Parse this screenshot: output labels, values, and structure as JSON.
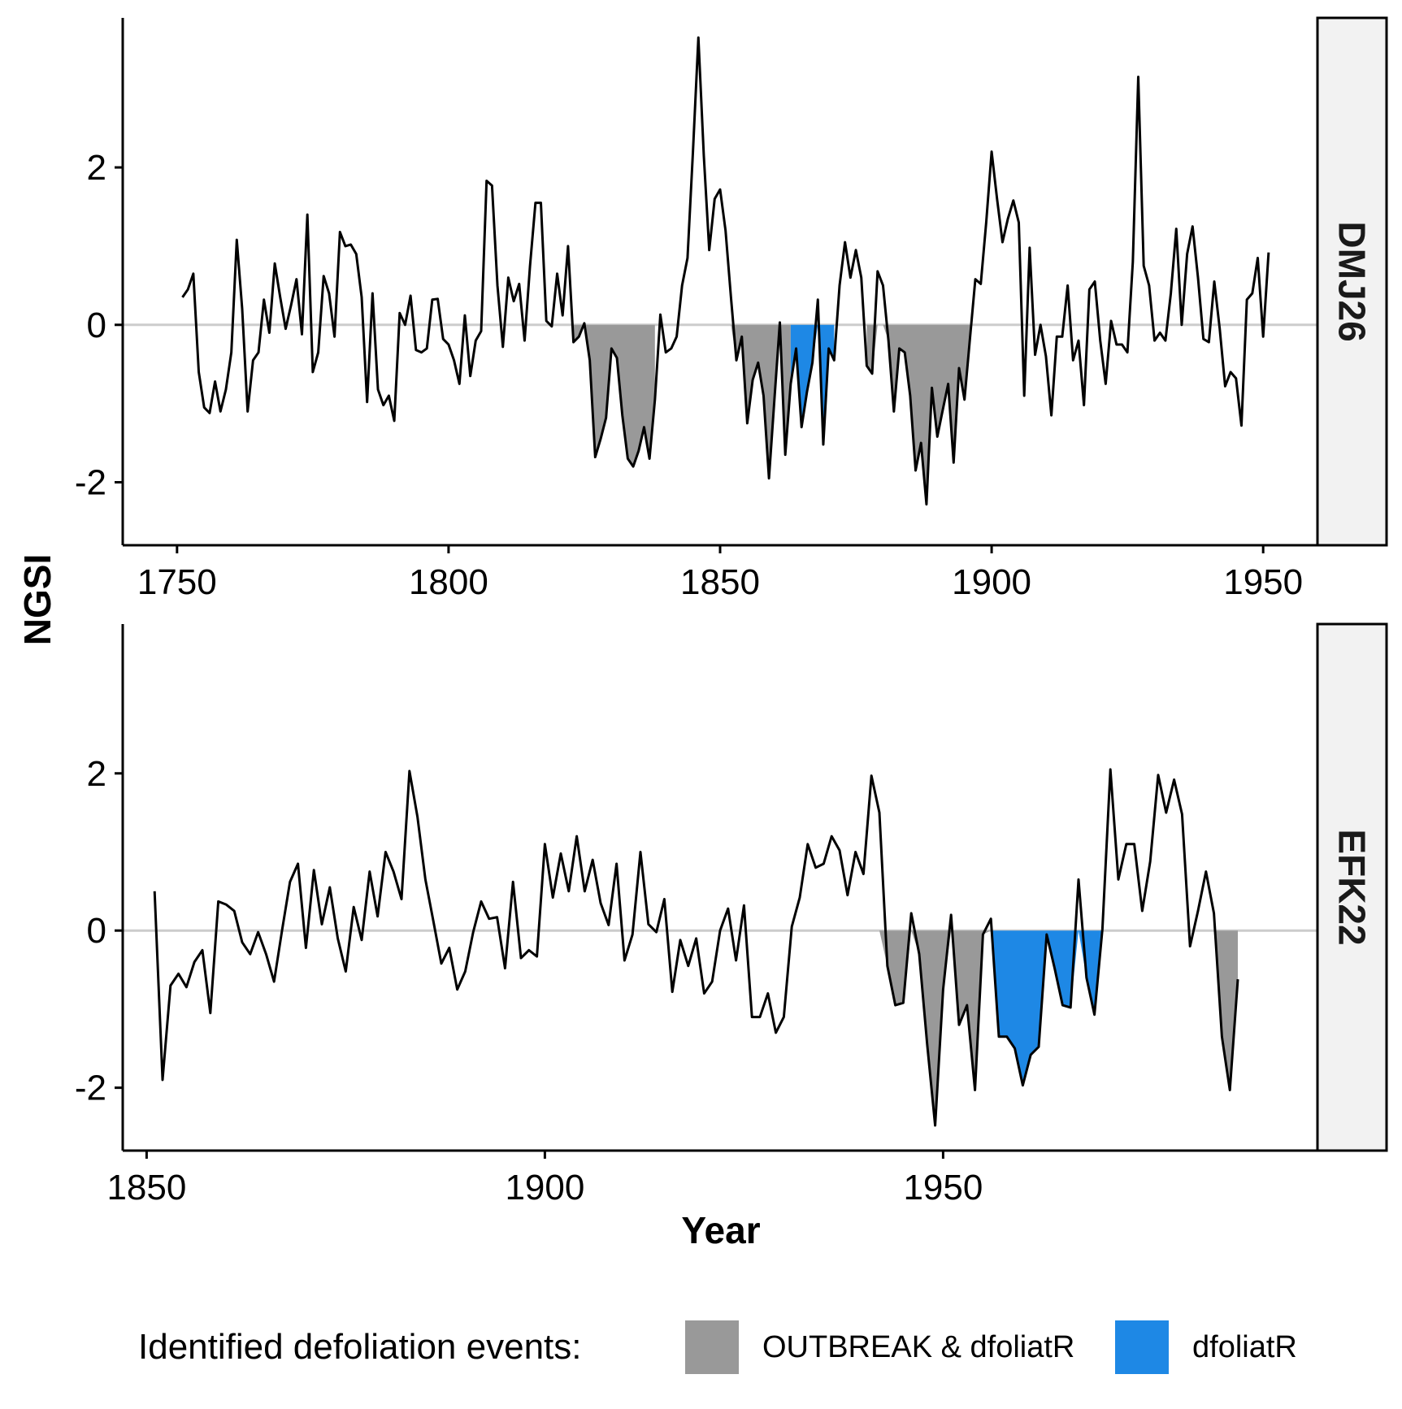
{
  "chart_data": {
    "type": "line",
    "ylabel": "NGSI",
    "xlabel": "Year",
    "legend": {
      "title": "Identified defoliation events:",
      "position": "bottom",
      "entries": [
        {
          "label": "OUTBREAK & dfoliatR",
          "color": "#999999"
        },
        {
          "label": "dfoliatR",
          "color": "#1e88e5"
        }
      ]
    },
    "ylim": [
      -2.8,
      3.9
    ],
    "yticks": [
      -2,
      0,
      2
    ],
    "ytick_labels": [
      "-2",
      "0",
      "2"
    ],
    "zero_line_color": "#cccccc",
    "line_color": "#000000",
    "panels": [
      {
        "strip": "DMJ26",
        "xlim": [
          1740,
          1960
        ],
        "xticks": [
          1750,
          1800,
          1850,
          1900,
          1950
        ],
        "xtick_labels": [
          "1750",
          "1800",
          "1850",
          "1900",
          "1950"
        ],
        "start_year": 1751,
        "values": [
          0.35,
          0.45,
          0.65,
          -0.6,
          -1.05,
          -1.12,
          -0.72,
          -1.1,
          -0.82,
          -0.35,
          1.08,
          0.2,
          -1.1,
          -0.45,
          -0.35,
          0.32,
          -0.1,
          0.78,
          0.35,
          -0.05,
          0.25,
          0.58,
          -0.12,
          1.4,
          -0.6,
          -0.35,
          0.62,
          0.4,
          -0.15,
          1.18,
          1.0,
          1.02,
          0.9,
          0.35,
          -0.98,
          0.4,
          -0.82,
          -1.02,
          -0.9,
          -1.22,
          0.15,
          0.0,
          0.37,
          -0.32,
          -0.35,
          -0.3,
          0.32,
          0.33,
          -0.18,
          -0.25,
          -0.45,
          -0.75,
          0.12,
          -0.65,
          -0.2,
          -0.08,
          1.83,
          1.77,
          0.5,
          -0.28,
          0.6,
          0.3,
          0.52,
          -0.2,
          0.75,
          1.55,
          1.55,
          0.05,
          -0.02,
          0.65,
          0.12,
          1.0,
          -0.22,
          -0.15,
          0.02,
          -0.45,
          -1.68,
          -1.45,
          -1.18,
          -0.3,
          -0.42,
          -1.15,
          -1.7,
          -1.8,
          -1.6,
          -1.3,
          -1.7,
          -0.95,
          0.13,
          -0.35,
          -0.3,
          -0.15,
          0.5,
          0.85,
          2.2,
          3.65,
          2.15,
          0.95,
          1.6,
          1.72,
          1.2,
          0.35,
          -0.45,
          -0.15,
          -1.25,
          -0.7,
          -0.48,
          -0.9,
          -1.95,
          -0.95,
          0.03,
          -1.65,
          -0.75,
          -0.3,
          -1.3,
          -0.85,
          -0.48,
          0.32,
          -1.52,
          -0.3,
          -0.45,
          0.5,
          1.05,
          0.6,
          0.95,
          0.6,
          -0.52,
          -0.62,
          0.68,
          0.5,
          -0.2,
          -1.1,
          -0.3,
          -0.35,
          -0.9,
          -1.85,
          -1.5,
          -2.28,
          -0.8,
          -1.42,
          -1.08,
          -0.75,
          -1.75,
          -0.55,
          -0.95,
          -0.18,
          0.58,
          0.52,
          1.3,
          2.2,
          1.6,
          1.05,
          1.35,
          1.58,
          1.3,
          -0.9,
          0.98,
          -0.38,
          0.0,
          -0.4,
          -1.15,
          -0.15,
          -0.15,
          0.5,
          -0.45,
          -0.2,
          -1.02,
          0.45,
          0.55,
          -0.2,
          -0.75,
          0.05,
          -0.25,
          -0.25,
          -0.35,
          0.8,
          3.15,
          0.75,
          0.5,
          -0.2,
          -0.1,
          -0.2,
          0.4,
          1.22,
          0.0,
          0.9,
          1.25,
          0.6,
          -0.18,
          -0.22,
          0.55,
          -0.05,
          -0.78,
          -0.6,
          -0.68,
          -1.28,
          0.32,
          0.4,
          0.85,
          -0.15,
          0.92
        ],
        "events": [
          {
            "type": "OUTBREAK & dfoliatR",
            "start": 1823,
            "end": 1838
          },
          {
            "type": "OUTBREAK & dfoliatR",
            "start": 1851,
            "end": 1863
          },
          {
            "type": "dfoliatR",
            "start": 1863,
            "end": 1871
          },
          {
            "type": "OUTBREAK & dfoliatR",
            "start": 1877,
            "end": 1896
          }
        ]
      },
      {
        "strip": "EFK22",
        "xlim": [
          1847,
          1997
        ],
        "xticks": [
          1850,
          1900,
          1950
        ],
        "xtick_labels": [
          "1850",
          "1900",
          "1950"
        ],
        "start_year": 1851,
        "values": [
          0.5,
          -1.9,
          -0.7,
          -0.55,
          -0.72,
          -0.4,
          -0.25,
          -1.05,
          0.37,
          0.33,
          0.25,
          -0.15,
          -0.3,
          -0.02,
          -0.3,
          -0.65,
          0.0,
          0.62,
          0.85,
          -0.22,
          0.77,
          0.08,
          0.55,
          -0.1,
          -0.52,
          0.3,
          -0.12,
          0.75,
          0.18,
          1.0,
          0.75,
          0.4,
          2.03,
          1.45,
          0.65,
          0.12,
          -0.42,
          -0.22,
          -0.75,
          -0.52,
          -0.02,
          0.37,
          0.15,
          0.17,
          -0.48,
          0.62,
          -0.35,
          -0.25,
          -0.33,
          1.1,
          0.42,
          0.98,
          0.5,
          1.2,
          0.5,
          0.9,
          0.35,
          0.07,
          0.85,
          -0.38,
          -0.05,
          1.0,
          0.08,
          -0.02,
          0.4,
          -0.78,
          -0.12,
          -0.45,
          -0.1,
          -0.8,
          -0.65,
          0.0,
          0.28,
          -0.38,
          0.32,
          -1.1,
          -1.1,
          -0.8,
          -1.3,
          -1.1,
          0.05,
          0.42,
          1.1,
          0.8,
          0.85,
          1.2,
          1.02,
          0.45,
          1.0,
          0.72,
          1.97,
          1.5,
          -0.45,
          -0.95,
          -0.92,
          0.22,
          -0.3,
          -1.45,
          -2.48,
          -0.75,
          0.2,
          -1.2,
          -0.95,
          -2.03,
          -0.05,
          0.15,
          -1.35,
          -1.35,
          -1.5,
          -1.97,
          -1.58,
          -1.48,
          -0.05,
          -0.48,
          -0.95,
          -0.98,
          0.65,
          -0.6,
          -1.07,
          0.02,
          2.05,
          0.65,
          1.1,
          1.1,
          0.25,
          0.88,
          1.98,
          1.5,
          1.92,
          1.48,
          -0.2,
          0.25,
          0.75,
          0.22,
          -1.35,
          -2.03,
          -0.62
        ],
        "events": [
          {
            "type": "OUTBREAK & dfoliatR",
            "start": 1942,
            "end": 1956
          },
          {
            "type": "dfoliatR",
            "start": 1956,
            "end": 1971
          },
          {
            "type": "OUTBREAK & dfoliatR",
            "start": 1984,
            "end": 1987
          }
        ]
      }
    ]
  }
}
